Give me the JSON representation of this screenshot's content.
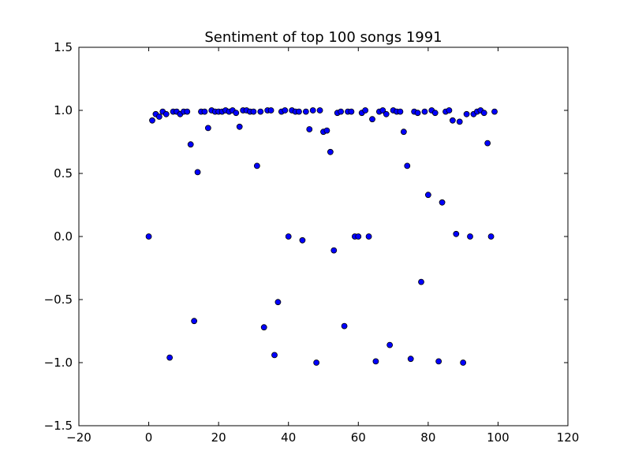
{
  "chart_data": {
    "type": "scatter",
    "title": "Sentiment of top 100 songs 1991",
    "xlabel": "",
    "ylabel": "",
    "xlim": [
      -20,
      120
    ],
    "ylim": [
      -1.5,
      1.5
    ],
    "xticks": [
      -20,
      0,
      20,
      40,
      60,
      80,
      100,
      120
    ],
    "yticks": [
      -1.5,
      -1.0,
      -0.5,
      0.0,
      0.5,
      1.0,
      1.5
    ],
    "grid": false,
    "marker_color": "#0000ff",
    "marker_edge_color": "#000000",
    "x": [
      0,
      1,
      2,
      3,
      4,
      5,
      6,
      7,
      8,
      9,
      10,
      11,
      12,
      13,
      14,
      15,
      16,
      17,
      18,
      19,
      20,
      21,
      22,
      23,
      24,
      25,
      26,
      27,
      28,
      29,
      30,
      31,
      32,
      33,
      34,
      35,
      36,
      37,
      38,
      39,
      40,
      41,
      42,
      43,
      44,
      45,
      46,
      47,
      48,
      49,
      50,
      51,
      52,
      53,
      54,
      55,
      56,
      57,
      58,
      59,
      60,
      61,
      62,
      63,
      64,
      65,
      66,
      67,
      68,
      69,
      70,
      71,
      72,
      73,
      74,
      75,
      76,
      77,
      78,
      79,
      80,
      81,
      82,
      83,
      84,
      85,
      86,
      87,
      88,
      89,
      90,
      91,
      92,
      93,
      94,
      95,
      96,
      97,
      98,
      99
    ],
    "y": [
      0.0,
      0.92,
      0.97,
      0.95,
      0.99,
      0.97,
      -0.96,
      0.99,
      0.99,
      0.97,
      0.99,
      0.99,
      0.73,
      -0.67,
      0.51,
      0.99,
      0.99,
      0.86,
      1.0,
      0.99,
      0.99,
      0.99,
      1.0,
      0.99,
      1.0,
      0.98,
      0.87,
      1.0,
      1.0,
      0.99,
      0.99,
      0.56,
      0.99,
      -0.72,
      1.0,
      1.0,
      -0.94,
      -0.52,
      0.99,
      1.0,
      0.0,
      1.0,
      0.99,
      0.99,
      -0.03,
      0.99,
      0.85,
      1.0,
      -1.0,
      1.0,
      0.83,
      0.84,
      0.67,
      -0.11,
      0.98,
      0.99,
      -0.71,
      0.99,
      0.99,
      0.0,
      0.0,
      0.98,
      1.0,
      0.0,
      0.93,
      -0.99,
      0.99,
      1.0,
      0.97,
      -0.86,
      1.0,
      0.99,
      0.99,
      0.83,
      0.56,
      -0.97,
      0.99,
      0.98,
      -0.36,
      0.99,
      0.33,
      1.0,
      0.98,
      -0.99,
      0.27,
      0.99,
      1.0,
      0.92,
      0.02,
      0.91,
      -1.0,
      0.97,
      0.0,
      0.97,
      0.99,
      1.0,
      0.98,
      0.74,
      0.0,
      0.99
    ]
  }
}
